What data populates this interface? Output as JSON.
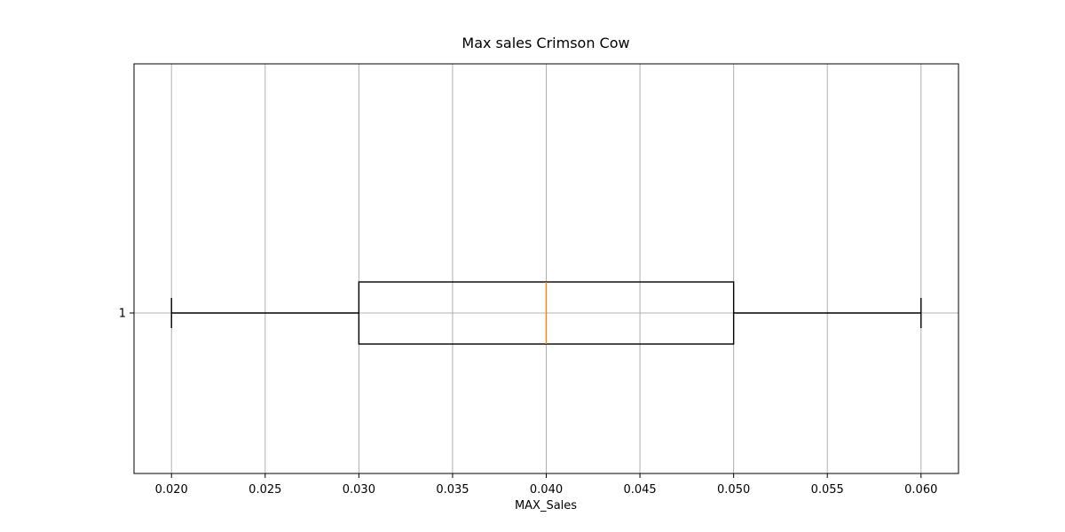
{
  "chart_data": {
    "type": "box",
    "orientation": "horizontal",
    "title": "Max sales Crimson Cow",
    "xlabel": "MAX_Sales",
    "ylabel": "",
    "xlim": [
      0.018,
      0.062
    ],
    "xticks": [
      "0.020",
      "0.025",
      "0.030",
      "0.035",
      "0.040",
      "0.045",
      "0.050",
      "0.055",
      "0.060"
    ],
    "yticks": [
      "1"
    ],
    "grid": true,
    "boxes": [
      {
        "label": "1",
        "whisker_low": 0.02,
        "q1": 0.03,
        "median": 0.04,
        "q3": 0.05,
        "whisker_high": 0.06
      }
    ],
    "colors": {
      "box": "#000000",
      "median": "#ff7f0e",
      "grid": "#b0b0b0"
    }
  }
}
